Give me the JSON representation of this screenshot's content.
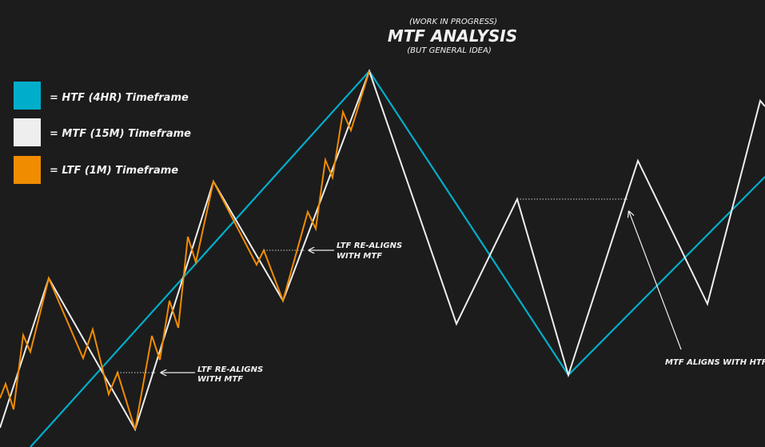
{
  "header": {
    "pre_title": "(WORK IN PROGRESS)",
    "title": "MTF ANALYSIS",
    "subtitle": "(BUT GENERAL IDEA)"
  },
  "legend": [
    {
      "label": "= HTF (4HR) Timeframe",
      "color": "#00aecb"
    },
    {
      "label": "= MTF (15M) Timeframe",
      "color": "#eeeeee"
    },
    {
      "label": "= LTF (1M) Timeframe",
      "color": "#f08c00"
    }
  ],
  "annotations": {
    "ltf_realign_1": {
      "line1": "LTF RE-ALIGNS",
      "line2": "WITH MTF"
    },
    "ltf_realign_2": {
      "line1": "LTF RE-ALIGNS",
      "line2": "WITH MTF"
    },
    "mtf_align": "MTF ALIGNS WITH HTF"
  },
  "colors": {
    "background": "#1c1c1c",
    "htf": "#00aecb",
    "mtf": "#eeeeee",
    "ltf": "#f08c00",
    "text": "#f2f2f2"
  }
}
